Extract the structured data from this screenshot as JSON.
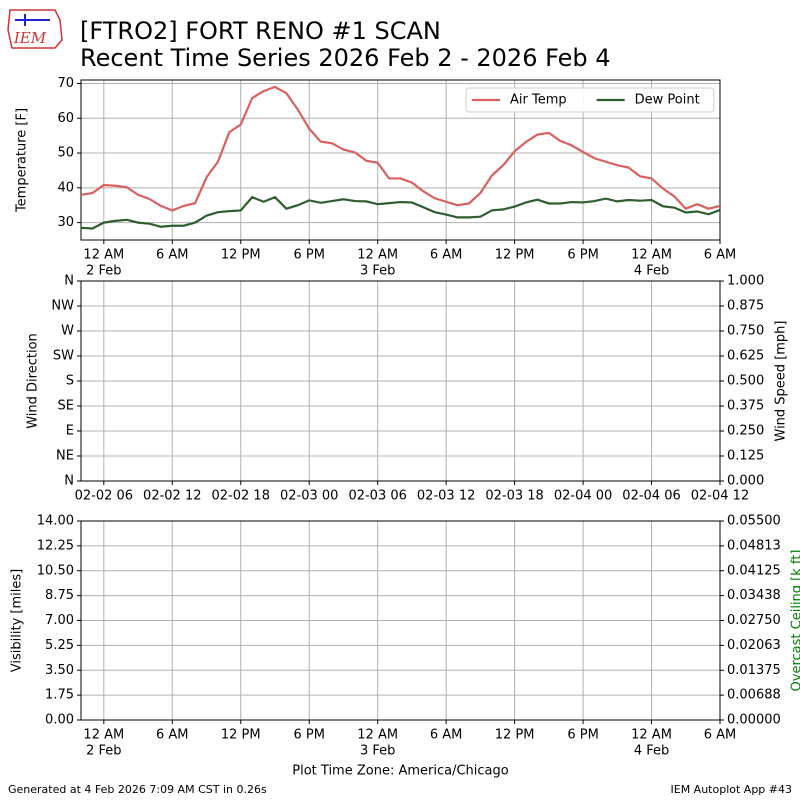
{
  "title": "[FTRO2] FORT RENO #1 SCAN",
  "subtitle": "Recent Time Series 2026 Feb 2 - 2026 Feb 4",
  "logo": "IEM",
  "footer_left": "Generated at 4 Feb 2026 7:09 AM CST in 0.26s",
  "footer_right": "IEM Autoplot App #43",
  "chart_data": [
    {
      "type": "line",
      "ylabel": "Temperature [F]",
      "grid": true,
      "legend": "upper right",
      "xlim": [
        "2026-02-01 22:00",
        "2026-02-04 06:00"
      ],
      "xticks": [
        {
          "value": "2026-02-02 00:00",
          "label": "12 AM",
          "date": "2 Feb"
        },
        {
          "value": "2026-02-02 06:00",
          "label": "6 AM"
        },
        {
          "value": "2026-02-02 12:00",
          "label": "12 PM"
        },
        {
          "value": "2026-02-02 18:00",
          "label": "6 PM"
        },
        {
          "value": "2026-02-03 00:00",
          "label": "12 AM",
          "date": "3 Feb"
        },
        {
          "value": "2026-02-03 06:00",
          "label": "6 AM"
        },
        {
          "value": "2026-02-03 12:00",
          "label": "12 PM"
        },
        {
          "value": "2026-02-03 18:00",
          "label": "6 PM"
        },
        {
          "value": "2026-02-04 00:00",
          "label": "12 AM",
          "date": "4 Feb"
        },
        {
          "value": "2026-02-04 06:00",
          "label": "6 AM"
        }
      ],
      "ylim": [
        25,
        71
      ],
      "yticks": [
        30,
        40,
        50,
        60,
        70
      ],
      "x": [
        "2026-02-01 22:00",
        "2026-02-01 23:00",
        "2026-02-02 00:00",
        "2026-02-02 01:00",
        "2026-02-02 02:00",
        "2026-02-02 03:00",
        "2026-02-02 04:00",
        "2026-02-02 05:00",
        "2026-02-02 06:00",
        "2026-02-02 07:00",
        "2026-02-02 08:00",
        "2026-02-02 09:00",
        "2026-02-02 10:00",
        "2026-02-02 11:00",
        "2026-02-02 12:00",
        "2026-02-02 13:00",
        "2026-02-02 14:00",
        "2026-02-02 15:00",
        "2026-02-02 16:00",
        "2026-02-02 17:00",
        "2026-02-02 18:00",
        "2026-02-02 19:00",
        "2026-02-02 20:00",
        "2026-02-02 21:00",
        "2026-02-02 22:00",
        "2026-02-02 23:00",
        "2026-02-03 00:00",
        "2026-02-03 01:00",
        "2026-02-03 02:00",
        "2026-02-03 03:00",
        "2026-02-03 04:00",
        "2026-02-03 05:00",
        "2026-02-03 06:00",
        "2026-02-03 07:00",
        "2026-02-03 08:00",
        "2026-02-03 09:00",
        "2026-02-03 10:00",
        "2026-02-03 11:00",
        "2026-02-03 12:00",
        "2026-02-03 13:00",
        "2026-02-03 14:00",
        "2026-02-03 15:00",
        "2026-02-03 16:00",
        "2026-02-03 17:00",
        "2026-02-03 18:00",
        "2026-02-03 19:00",
        "2026-02-03 20:00",
        "2026-02-03 21:00",
        "2026-02-03 22:00",
        "2026-02-03 23:00",
        "2026-02-04 00:00",
        "2026-02-04 01:00",
        "2026-02-04 02:00",
        "2026-02-04 03:00",
        "2026-02-04 04:00",
        "2026-02-04 05:00",
        "2026-02-04 06:00"
      ],
      "series": [
        {
          "name": "Air Temp",
          "color": "#d9605f",
          "values": [
            38,
            38.5,
            40.8,
            40.6,
            40.2,
            38,
            36.8,
            34.8,
            33.5,
            34.8,
            35.6,
            43,
            47.5,
            56,
            58.2,
            65.8,
            67.8,
            69,
            67.2,
            62.5,
            57,
            53.3,
            52.8,
            51,
            50.2,
            47.8,
            47.2,
            42.7,
            42.7,
            41.5,
            39,
            37,
            36,
            35,
            35.5,
            38.5,
            43.5,
            46.5,
            50.5,
            53.2,
            55.3,
            55.8,
            53.5,
            52.2,
            50.3,
            48.5,
            47.5,
            46.5,
            45.8,
            43.3,
            42.7,
            39.8,
            37.5,
            34,
            35.3,
            34,
            34.8
          ]
        },
        {
          "name": "Dew Point",
          "color": "#2e5e2e",
          "values": [
            28.5,
            28.3,
            30,
            30.5,
            30.8,
            30,
            29.7,
            28.8,
            29.1,
            29.1,
            30,
            32,
            33,
            33.3,
            33.5,
            37.3,
            36,
            37.3,
            34,
            35,
            36.4,
            35.7,
            36.2,
            36.7,
            36.2,
            36.1,
            35.3,
            35.6,
            35.9,
            35.8,
            34.4,
            33,
            32.3,
            31.5,
            31.5,
            31.7,
            33.5,
            33.8,
            34.6,
            35.8,
            36.6,
            35.5,
            35.5,
            35.9,
            35.8,
            36.2,
            36.9,
            36.1,
            36.5,
            36.3,
            36.5,
            34.7,
            34.3,
            32.9,
            33.2,
            32.4,
            33.6
          ]
        }
      ]
    },
    {
      "type": "line",
      "ylabel": "Wind Direction",
      "y2label": "Wind Speed [mph]",
      "grid": true,
      "xlim": [
        "2026-02-02 04:00",
        "2026-02-04 12:00"
      ],
      "xticks": [
        {
          "value": "2026-02-02 06:00",
          "label": "02-02 06"
        },
        {
          "value": "2026-02-02 12:00",
          "label": "02-02 12"
        },
        {
          "value": "2026-02-02 18:00",
          "label": "02-02 18"
        },
        {
          "value": "2026-02-03 00:00",
          "label": "02-03 00"
        },
        {
          "value": "2026-02-03 06:00",
          "label": "02-03 06"
        },
        {
          "value": "2026-02-03 12:00",
          "label": "02-03 12"
        },
        {
          "value": "2026-02-03 18:00",
          "label": "02-03 18"
        },
        {
          "value": "2026-02-04 00:00",
          "label": "02-04 00"
        },
        {
          "value": "2026-02-04 06:00",
          "label": "02-04 06"
        },
        {
          "value": "2026-02-04 12:00",
          "label": "02-04 12"
        }
      ],
      "ylim": [
        0,
        360
      ],
      "yticks": [
        {
          "value": 0,
          "label": "N"
        },
        {
          "value": 45,
          "label": "NE"
        },
        {
          "value": 90,
          "label": "E"
        },
        {
          "value": 135,
          "label": "SE"
        },
        {
          "value": 180,
          "label": "S"
        },
        {
          "value": 225,
          "label": "SW"
        },
        {
          "value": 270,
          "label": "W"
        },
        {
          "value": 315,
          "label": "NW"
        },
        {
          "value": 360,
          "label": "N"
        }
      ],
      "y2lim": [
        0,
        1
      ],
      "y2ticks": [
        {
          "value": 0,
          "label": "0.000"
        },
        {
          "value": 0.125,
          "label": "0.125"
        },
        {
          "value": 0.25,
          "label": "0.250"
        },
        {
          "value": 0.375,
          "label": "0.375"
        },
        {
          "value": 0.5,
          "label": "0.500"
        },
        {
          "value": 0.625,
          "label": "0.625"
        },
        {
          "value": 0.75,
          "label": "0.750"
        },
        {
          "value": 0.875,
          "label": "0.875"
        },
        {
          "value": 1,
          "label": "1.000"
        }
      ]
    },
    {
      "type": "line",
      "ylabel": "Visibility [miles]",
      "y2label": "Overcast Ceiling [k ft]",
      "y2label_color": "#008000",
      "xlabel": "Plot Time Zone: America/Chicago",
      "grid": true,
      "xlim": [
        "2026-02-01 22:00",
        "2026-02-04 06:00"
      ],
      "xticks": [
        {
          "value": "2026-02-02 00:00",
          "label": "12 AM",
          "date": "2 Feb"
        },
        {
          "value": "2026-02-02 06:00",
          "label": "6 AM"
        },
        {
          "value": "2026-02-02 12:00",
          "label": "12 PM"
        },
        {
          "value": "2026-02-02 18:00",
          "label": "6 PM"
        },
        {
          "value": "2026-02-03 00:00",
          "label": "12 AM",
          "date": "3 Feb"
        },
        {
          "value": "2026-02-03 06:00",
          "label": "6 AM"
        },
        {
          "value": "2026-02-03 12:00",
          "label": "12 PM"
        },
        {
          "value": "2026-02-03 18:00",
          "label": "6 PM"
        },
        {
          "value": "2026-02-04 00:00",
          "label": "12 AM",
          "date": "4 Feb"
        },
        {
          "value": "2026-02-04 06:00",
          "label": "6 AM"
        }
      ],
      "ylim": [
        0,
        14
      ],
      "yticks": [
        {
          "value": 0,
          "label": "0.00"
        },
        {
          "value": 1.75,
          "label": "1.75"
        },
        {
          "value": 3.5,
          "label": "3.50"
        },
        {
          "value": 5.25,
          "label": "5.25"
        },
        {
          "value": 7,
          "label": "7.00"
        },
        {
          "value": 8.75,
          "label": "8.75"
        },
        {
          "value": 10.5,
          "label": "10.50"
        },
        {
          "value": 12.25,
          "label": "12.25"
        },
        {
          "value": 14,
          "label": "14.00"
        }
      ],
      "y2lim": [
        0,
        0.055
      ],
      "y2ticks": [
        {
          "value": 0,
          "label": "0.00000"
        },
        {
          "value": 0.006875,
          "label": "0.00688"
        },
        {
          "value": 0.01375,
          "label": "0.01375"
        },
        {
          "value": 0.020625,
          "label": "0.02063"
        },
        {
          "value": 0.0275,
          "label": "0.02750"
        },
        {
          "value": 0.034375,
          "label": "0.03438"
        },
        {
          "value": 0.04125,
          "label": "0.04125"
        },
        {
          "value": 0.048125,
          "label": "0.04813"
        },
        {
          "value": 0.055,
          "label": "0.05500"
        }
      ]
    }
  ]
}
